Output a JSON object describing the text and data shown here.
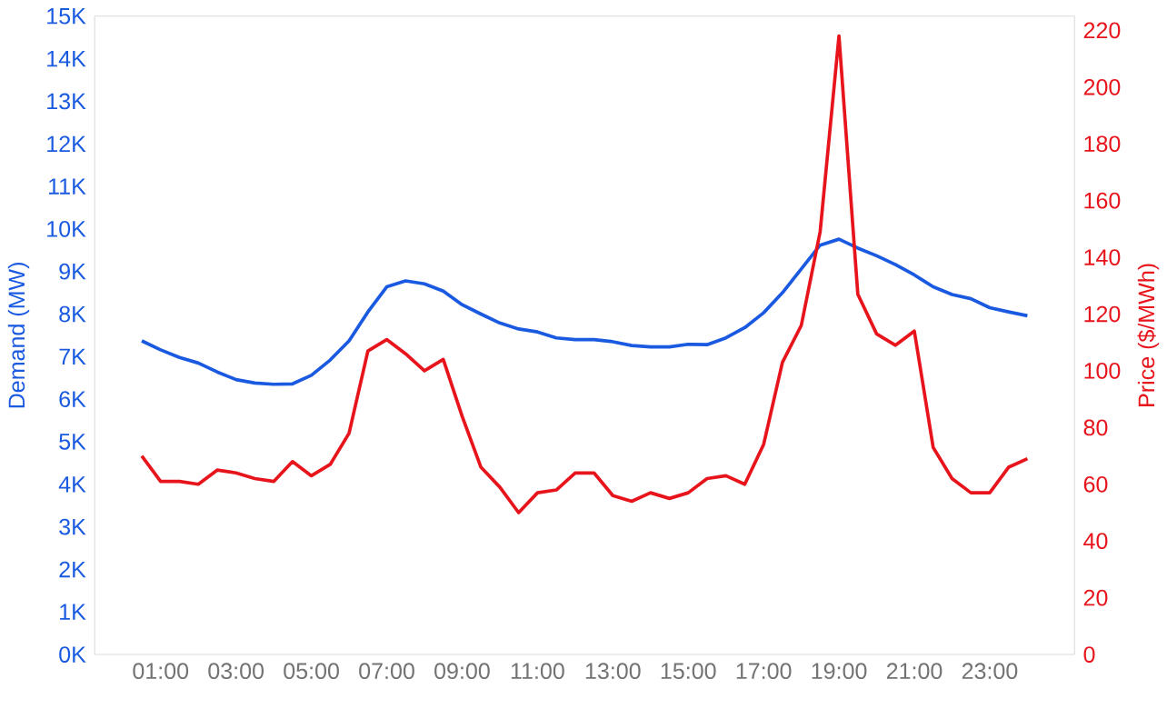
{
  "chart_data": {
    "type": "line",
    "ylabel": "Demand (MW)",
    "y2label": "Price ($/MWh)",
    "x": [
      0.5,
      1,
      1.5,
      2,
      2.5,
      3,
      3.5,
      4,
      4.5,
      5,
      5.5,
      6,
      6.5,
      7,
      7.5,
      8,
      8.5,
      9,
      9.5,
      10,
      10.5,
      11,
      11.5,
      12,
      12.5,
      13,
      13.5,
      14,
      14.5,
      15,
      15.5,
      16,
      16.5,
      17,
      17.5,
      18,
      18.5,
      19,
      19.5,
      20,
      20.5,
      21,
      21.5,
      22,
      22.5,
      23,
      23.5,
      24
    ],
    "series": [
      {
        "color": "#1a5ae0",
        "values": [
          7370,
          7160,
          6980,
          6850,
          6640,
          6460,
          6380,
          6350,
          6360,
          6560,
          6920,
          7370,
          8050,
          8640,
          8780,
          8710,
          8540,
          8220,
          8000,
          7790,
          7650,
          7580,
          7440,
          7400,
          7400,
          7350,
          7260,
          7230,
          7230,
          7290,
          7280,
          7440,
          7680,
          8030,
          8500,
          9060,
          9620,
          9760,
          9550,
          9370,
          9160,
          8920,
          8640,
          8460,
          8360,
          8150,
          8050,
          7960
        ]
      },
      {
        "color": "#e8141c",
        "axis": "y2",
        "values": [
          70,
          61,
          61,
          60,
          65,
          64,
          62,
          61,
          68,
          63,
          67,
          78,
          107,
          111,
          106,
          100,
          104,
          84,
          66,
          59,
          50,
          57,
          58,
          64,
          64,
          56,
          54,
          57,
          55,
          57,
          62,
          63,
          60,
          74,
          103,
          116,
          149,
          218,
          127,
          113,
          109,
          114,
          73,
          62,
          57,
          57,
          66,
          69
        ]
      }
    ],
    "xlim": [
      -0.75,
      25.25
    ],
    "xticks": [
      {
        "value": 1,
        "label": "01:00"
      },
      {
        "value": 3,
        "label": "03:00"
      },
      {
        "value": 5,
        "label": "05:00"
      },
      {
        "value": 7,
        "label": "07:00"
      },
      {
        "value": 9,
        "label": "09:00"
      },
      {
        "value": 11,
        "label": "11:00"
      },
      {
        "value": 13,
        "label": "13:00"
      },
      {
        "value": 15,
        "label": "15:00"
      },
      {
        "value": 17,
        "label": "17:00"
      },
      {
        "value": 19,
        "label": "19:00"
      },
      {
        "value": 21,
        "label": "21:00"
      },
      {
        "value": 23,
        "label": "23:00"
      }
    ],
    "ylim": [
      0,
      15000
    ],
    "yticks": [
      {
        "value": 0,
        "label": "0K"
      },
      {
        "value": 1000,
        "label": "1K"
      },
      {
        "value": 2000,
        "label": "2K"
      },
      {
        "value": 3000,
        "label": "3K"
      },
      {
        "value": 4000,
        "label": "4K"
      },
      {
        "value": 5000,
        "label": "5K"
      },
      {
        "value": 6000,
        "label": "6K"
      },
      {
        "value": 7000,
        "label": "7K"
      },
      {
        "value": 8000,
        "label": "8K"
      },
      {
        "value": 9000,
        "label": "9K"
      },
      {
        "value": 10000,
        "label": "10K"
      },
      {
        "value": 11000,
        "label": "11K"
      },
      {
        "value": 12000,
        "label": "12K"
      },
      {
        "value": 13000,
        "label": "13K"
      },
      {
        "value": 14000,
        "label": "14K"
      },
      {
        "value": 15000,
        "label": "15K"
      }
    ],
    "y2lim": [
      0,
      225
    ],
    "y2ticks": [
      0,
      20,
      40,
      60,
      80,
      100,
      120,
      140,
      160,
      180,
      200,
      220
    ],
    "line_style": "solid",
    "grid": false,
    "legend": false
  }
}
